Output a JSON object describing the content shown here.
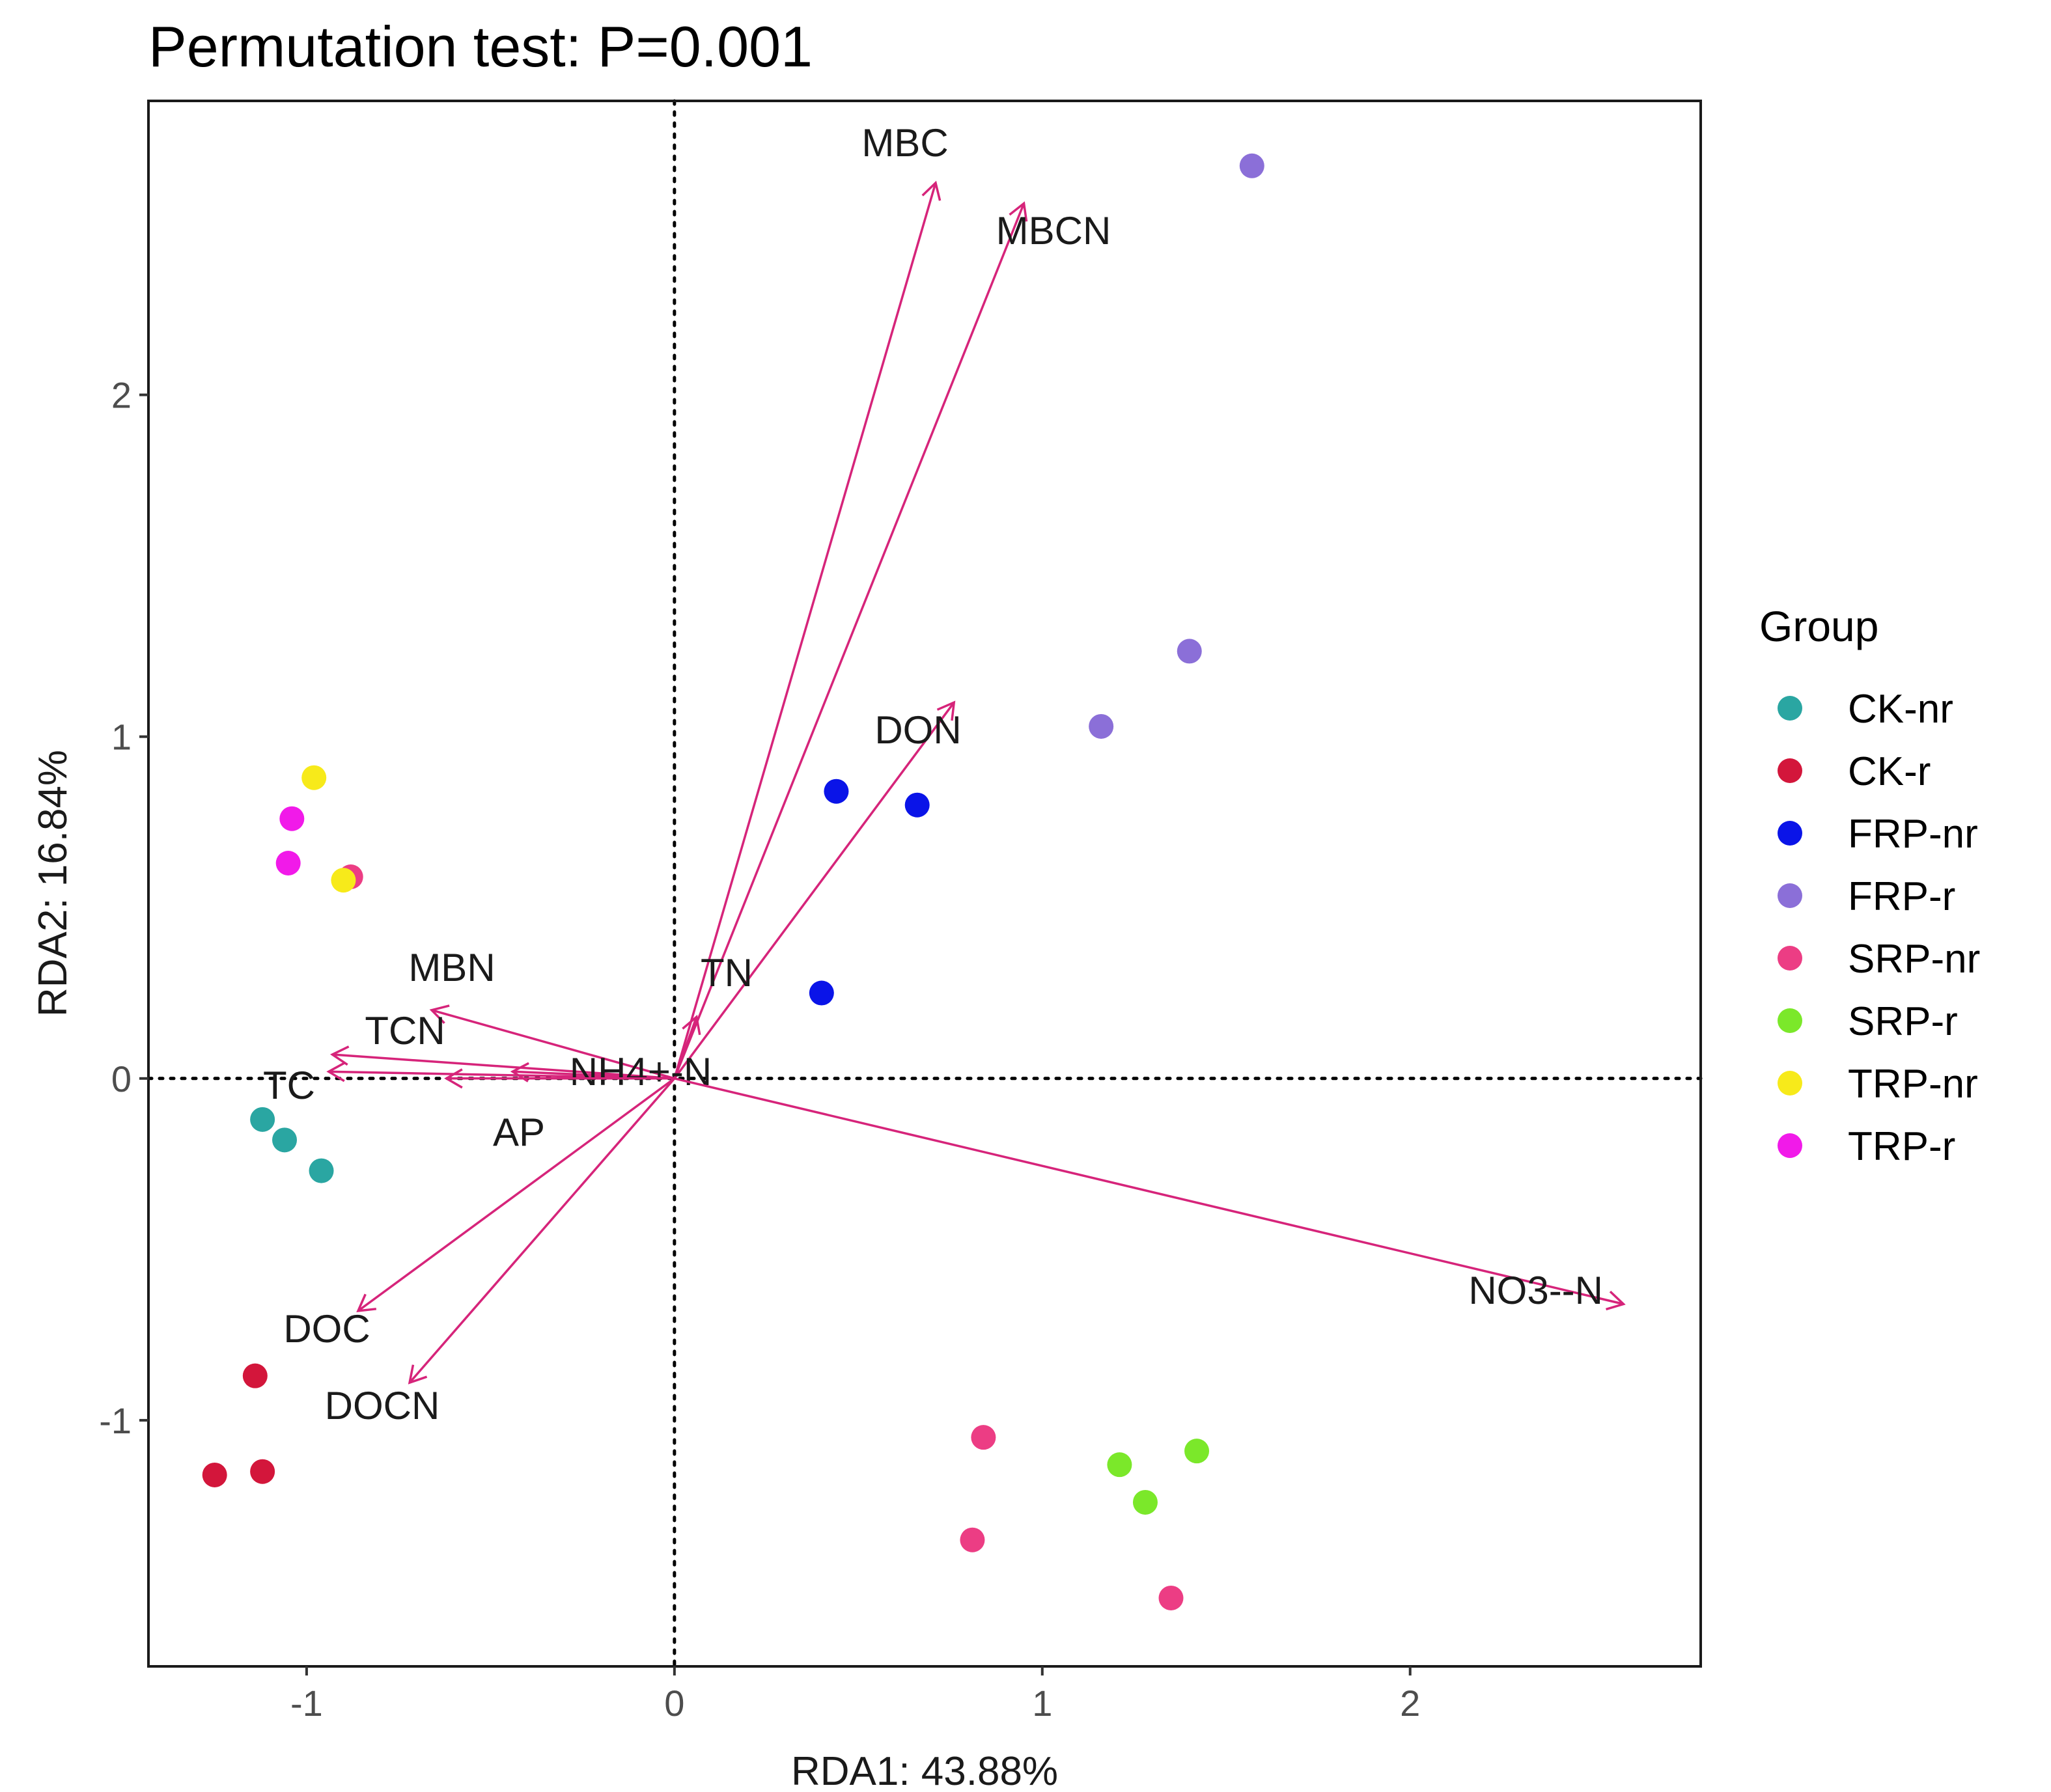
{
  "chart_data": {
    "type": "scatter",
    "title": "Permutation test: P=0.001",
    "xlabel": "RDA1: 43.88%",
    "ylabel": "RDA2: 16.84%",
    "xlim": [
      -1.43,
      2.79
    ],
    "ylim": [
      -1.72,
      2.86
    ],
    "xticks": [
      {
        "value": -1,
        "label": "-1"
      },
      {
        "value": 0,
        "label": "0"
      },
      {
        "value": 1,
        "label": "1"
      },
      {
        "value": 2,
        "label": "2"
      }
    ],
    "yticks": [
      {
        "value": -1,
        "label": "-1"
      },
      {
        "value": 0,
        "label": "0"
      },
      {
        "value": 1,
        "label": "1"
      },
      {
        "value": 2,
        "label": "2"
      }
    ],
    "grid": false,
    "reference_lines": {
      "x": 0,
      "y": 0,
      "style": "dotted"
    },
    "arrow_color": "#d6247a",
    "arrows": [
      {
        "name": "MBC",
        "x": 0.71,
        "y": 2.62
      },
      {
        "name": "MBCN",
        "x": 0.95,
        "y": 2.56
      },
      {
        "name": "DON",
        "x": 0.76,
        "y": 1.1
      },
      {
        "name": "TN",
        "x": 0.06,
        "y": 0.18
      },
      {
        "name": "MBN",
        "x": -0.66,
        "y": 0.2
      },
      {
        "name": "TCN",
        "x": -0.93,
        "y": 0.07
      },
      {
        "name": "TC",
        "x": -0.94,
        "y": 0.02
      },
      {
        "name": "NH4+-N",
        "x": -0.44,
        "y": 0.02
      },
      {
        "name": "AP",
        "x": -0.62,
        "y": 0.0
      },
      {
        "name": "DOC",
        "x": -0.86,
        "y": -0.68
      },
      {
        "name": "DOCN",
        "x": -0.72,
        "y": -0.89
      },
      {
        "name": "NO3--N",
        "x": 2.58,
        "y": -0.66
      }
    ],
    "legend": {
      "title": "Group",
      "position": "right",
      "entries": [
        {
          "name": "CK-nr",
          "color": "#2aa6a2"
        },
        {
          "name": "CK-r",
          "color": "#d3163b"
        },
        {
          "name": "FRP-nr",
          "color": "#0a14e8"
        },
        {
          "name": "FRP-r",
          "color": "#8b6fd8"
        },
        {
          "name": "SRP-nr",
          "color": "#ec3d84"
        },
        {
          "name": "SRP-r",
          "color": "#7be82a"
        },
        {
          "name": "TRP-nr",
          "color": "#f7ea1a"
        },
        {
          "name": "TRP-r",
          "color": "#f11ae9"
        }
      ]
    },
    "series": [
      {
        "name": "CK-nr",
        "points": [
          [
            -1.12,
            -0.12
          ],
          [
            -1.06,
            -0.18
          ],
          [
            -0.96,
            -0.27
          ]
        ]
      },
      {
        "name": "CK-r",
        "points": [
          [
            -1.14,
            -0.87
          ],
          [
            -1.25,
            -1.16
          ],
          [
            -1.12,
            -1.15
          ]
        ]
      },
      {
        "name": "FRP-nr",
        "points": [
          [
            0.44,
            0.84
          ],
          [
            0.66,
            0.8
          ],
          [
            0.4,
            0.25
          ]
        ]
      },
      {
        "name": "FRP-r",
        "points": [
          [
            1.57,
            2.67
          ],
          [
            1.4,
            1.25
          ],
          [
            1.16,
            1.03
          ]
        ]
      },
      {
        "name": "SRP-nr",
        "points": [
          [
            0.84,
            -1.05
          ],
          [
            0.81,
            -1.35
          ],
          [
            1.35,
            -1.52
          ],
          [
            -0.88,
            0.59
          ]
        ]
      },
      {
        "name": "SRP-r",
        "points": [
          [
            1.21,
            -1.13
          ],
          [
            1.42,
            -1.09
          ],
          [
            1.28,
            -1.24
          ]
        ]
      },
      {
        "name": "TRP-nr",
        "points": [
          [
            -0.98,
            0.88
          ],
          [
            -0.9,
            0.58
          ]
        ]
      },
      {
        "name": "TRP-r",
        "points": [
          [
            -1.04,
            0.76
          ],
          [
            -1.05,
            0.63
          ]
        ]
      }
    ]
  }
}
